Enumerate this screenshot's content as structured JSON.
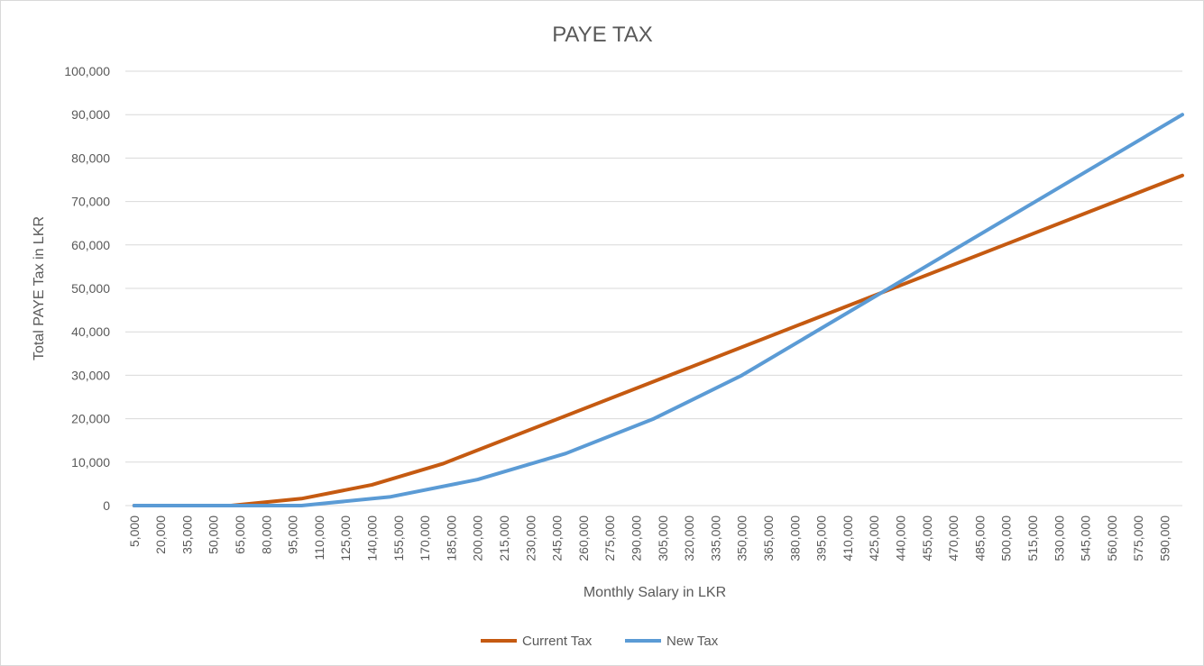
{
  "chart_data": {
    "type": "line",
    "title": "PAYE TAX",
    "xlabel": "Monthly Salary in LKR",
    "ylabel": "Total PAYE Tax in LKR",
    "ylim": [
      0,
      100000
    ],
    "y_ticks": [
      "0",
      "10,000",
      "20,000",
      "30,000",
      "40,000",
      "50,000",
      "60,000",
      "70,000",
      "80,000",
      "90,000",
      "100,000"
    ],
    "x": [
      5000,
      20000,
      35000,
      50000,
      65000,
      80000,
      95000,
      110000,
      125000,
      140000,
      155000,
      170000,
      185000,
      200000,
      215000,
      230000,
      245000,
      260000,
      275000,
      290000,
      305000,
      320000,
      335000,
      350000,
      365000,
      380000,
      395000,
      410000,
      425000,
      440000,
      455000,
      470000,
      485000,
      500000,
      515000,
      530000,
      545000,
      560000,
      575000,
      590000
    ],
    "x_tick_labels": [
      "5,000",
      "20,000",
      "35,000",
      "50,000",
      "65,000",
      "80,000",
      "95,000",
      "110,000",
      "125,000",
      "140,000",
      "155,000",
      "170,000",
      "185,000",
      "200,000",
      "215,000",
      "230,000",
      "245,000",
      "260,000",
      "275,000",
      "290,000",
      "305,000",
      "320,000",
      "335,000",
      "350,000",
      "365,000",
      "380,000",
      "395,000",
      "410,000",
      "425,000",
      "440,000",
      "455,000",
      "470,000",
      "485,000",
      "500,000",
      "515,000",
      "530,000",
      "545,000",
      "560,000",
      "575,000",
      "590,000"
    ],
    "series": [
      {
        "name": "Current Tax",
        "color": "#c55a11",
        "points": [
          [
            5000,
            0
          ],
          [
            60000,
            0
          ],
          [
            100000,
            1600
          ],
          [
            140000,
            4800
          ],
          [
            180000,
            9600
          ],
          [
            600000,
            76000
          ]
        ]
      },
      {
        "name": "New Tax",
        "color": "#5b9bd5",
        "points": [
          [
            5000,
            0
          ],
          [
            100000,
            0
          ],
          [
            150000,
            2000
          ],
          [
            200000,
            6000
          ],
          [
            250000,
            12000
          ],
          [
            300000,
            20000
          ],
          [
            350000,
            30000
          ],
          [
            600000,
            90000
          ]
        ]
      }
    ],
    "grid": true,
    "legend_position": "bottom"
  }
}
